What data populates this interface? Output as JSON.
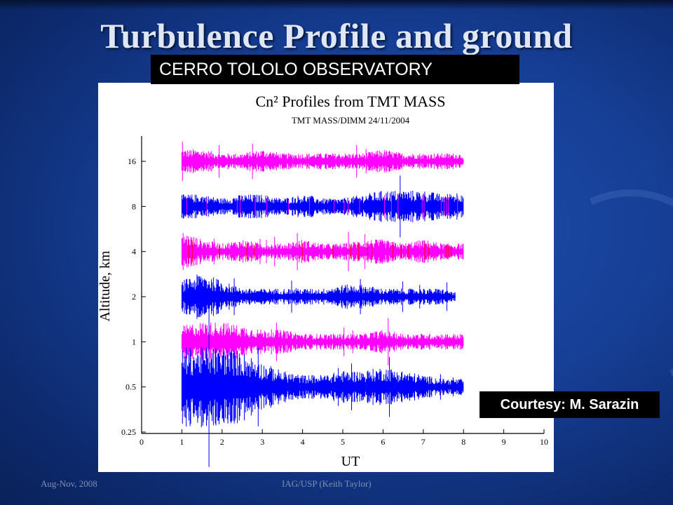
{
  "slide": {
    "title": "Turbulence Profile and ground",
    "observatory_label": "CERRO TOLOLO OBSERVATORY",
    "courtesy": "Courtesy: M. Sarazin",
    "footer_left": "Aug-Nov, 2008",
    "footer_center": "IAG/USP (Keith Taylor)"
  },
  "chart_data": {
    "type": "line",
    "title": "Cn² Profiles from TMT MASS",
    "subtitle": "TMT MASS/DIMM 24/11/2004",
    "xlabel": "UT",
    "ylabel": "Altitude, km",
    "xlim": [
      0,
      10
    ],
    "x_ticks": [
      "0",
      "1",
      "2",
      "3",
      "4",
      "5",
      "6",
      "7",
      "8",
      "9",
      "10"
    ],
    "y_ticks": [
      "0.25",
      "0.5",
      "1",
      "2",
      "4",
      "8",
      "16"
    ],
    "grid": false,
    "series": [
      {
        "altitude_label": "16",
        "color": "#ff00ff",
        "x_start": 1.0,
        "x_end": 8.0,
        "x": [
          1.0,
          1.5,
          2.0,
          2.5,
          3.0,
          3.5,
          4.0,
          4.5,
          5.0,
          5.5,
          6.0,
          6.5,
          7.0,
          7.5,
          8.0
        ],
        "amplitude": [
          3,
          3,
          2,
          2,
          3,
          2,
          2,
          2,
          2,
          2,
          3,
          2,
          2,
          2,
          2
        ]
      },
      {
        "altitude_label": "8",
        "color": "#0000ff",
        "accent_color": "#ff00ff",
        "x_start": 1.0,
        "x_end": 8.0,
        "x": [
          1.0,
          1.5,
          2.0,
          2.5,
          3.0,
          3.5,
          4.0,
          4.5,
          5.0,
          5.5,
          6.0,
          6.5,
          7.0,
          7.5,
          8.0
        ],
        "amplitude": [
          3,
          3,
          2,
          3,
          3,
          2,
          3,
          2,
          2,
          3,
          4,
          4,
          4,
          3,
          4
        ]
      },
      {
        "altitude_label": "4",
        "color": "#ff00ff",
        "accent_color": "#ff0000",
        "x_start": 1.0,
        "x_end": 8.0,
        "x": [
          1.0,
          1.5,
          2.0,
          2.5,
          3.0,
          3.5,
          4.0,
          4.5,
          5.0,
          5.5,
          6.0,
          6.5,
          7.0,
          7.5,
          8.0
        ],
        "amplitude": [
          5,
          3,
          2,
          3,
          2,
          2,
          3,
          2,
          2,
          3,
          3,
          2,
          3,
          2,
          2
        ]
      },
      {
        "altitude_label": "2",
        "color": "#0000ff",
        "x_start": 1.0,
        "x_end": 7.8,
        "x": [
          1.0,
          1.5,
          2.0,
          2.5,
          3.0,
          3.5,
          4.0,
          4.5,
          5.0,
          5.5,
          6.0,
          6.5,
          7.0,
          7.5,
          7.8
        ],
        "amplitude": [
          4,
          6,
          4,
          2,
          2,
          2,
          2,
          2,
          3,
          3,
          2,
          2,
          2,
          2,
          1
        ]
      },
      {
        "altitude_label": "1",
        "color": "#ff00ff",
        "x_start": 1.0,
        "x_end": 8.0,
        "x": [
          1.0,
          1.5,
          2.0,
          2.5,
          3.0,
          3.5,
          4.0,
          4.5,
          5.0,
          5.5,
          6.0,
          6.5,
          7.0,
          7.5,
          8.0
        ],
        "amplitude": [
          4,
          5,
          5,
          4,
          3,
          3,
          2,
          2,
          2,
          2,
          3,
          2,
          2,
          2,
          2
        ]
      },
      {
        "altitude_label": "0.5",
        "color": "#0000ff",
        "x_start": 1.0,
        "x_end": 8.0,
        "x": [
          1.0,
          1.5,
          2.0,
          2.5,
          3.0,
          3.5,
          4.0,
          4.5,
          5.0,
          5.5,
          6.0,
          6.5,
          7.0,
          7.5,
          8.0
        ],
        "amplitude": [
          10,
          10,
          10,
          9,
          6,
          4,
          3,
          3,
          4,
          4,
          5,
          4,
          3,
          2,
          2
        ]
      }
    ]
  }
}
